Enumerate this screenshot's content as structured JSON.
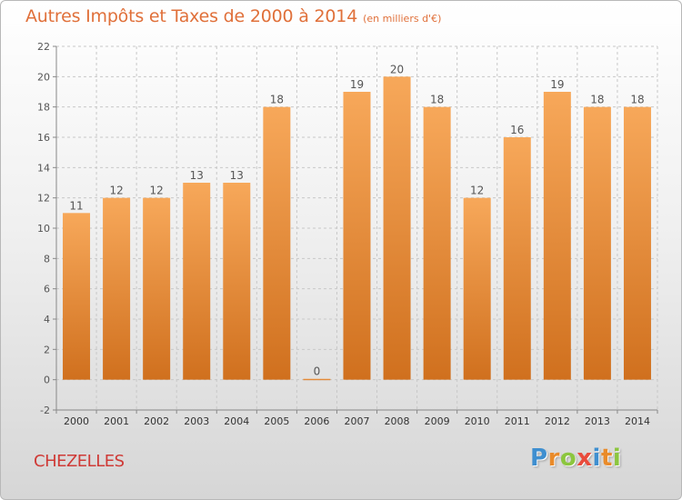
{
  "title": "Autres Impôts et Taxes de 2000 à 2014",
  "subtitle": "(en milliers d'€)",
  "commune": "CHEZELLES",
  "logo": {
    "text": "Proxiti",
    "letters": [
      {
        "ch": "P",
        "color": "#3f8fd0"
      },
      {
        "ch": "r",
        "color": "#e98b2a"
      },
      {
        "ch": "o",
        "color": "#8cc63f"
      },
      {
        "ch": "x",
        "color": "#e94b3c"
      },
      {
        "ch": "i",
        "color": "#3f8fd0"
      },
      {
        "ch": "t",
        "color": "#e98b2a"
      },
      {
        "ch": "i",
        "color": "#8cc63f"
      }
    ]
  },
  "colors": {
    "bar_light": "#f7a85a",
    "bar_dark": "#d0701e",
    "title": "#e0703a",
    "commune": "#cf3a36",
    "grid": "#c8c8c8"
  },
  "chart_data": {
    "type": "bar",
    "title": "Autres Impôts et Taxes de 2000 à 2014",
    "subtitle": "(en milliers d'€)",
    "xlabel": "",
    "ylabel": "",
    "categories": [
      "2000",
      "2001",
      "2002",
      "2003",
      "2004",
      "2005",
      "2006",
      "2007",
      "2008",
      "2009",
      "2010",
      "2011",
      "2012",
      "2013",
      "2014"
    ],
    "values": [
      11,
      12,
      12,
      13,
      13,
      18,
      0,
      19,
      20,
      18,
      12,
      16,
      19,
      18,
      18
    ],
    "ylim": [
      -2,
      22
    ],
    "yticks": [
      -2,
      0,
      2,
      4,
      6,
      8,
      10,
      12,
      14,
      16,
      18,
      20,
      22
    ],
    "grid": true,
    "data_labels": true
  }
}
